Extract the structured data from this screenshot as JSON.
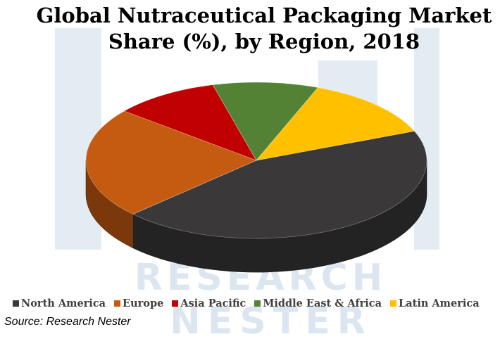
{
  "title_line1": "Global Nutraceutical Packaging Market",
  "title_line2": "Share (%), by Region, 2018",
  "source": "Source: Research Nester",
  "watermark": {
    "line1": "RESEARCH",
    "line2": "NESTER",
    "color": "#dbe6f0"
  },
  "chart_data": {
    "type": "pie",
    "title": "Global Nutraceutical Packaging Market Share (%), by Region, 2018",
    "legend_position": "bottom",
    "slices": [
      {
        "label": "North America",
        "value": 44,
        "color": "#3a3838"
      },
      {
        "label": "Europe",
        "value": 23,
        "color": "#c55a11"
      },
      {
        "label": "Asia Pacific",
        "value": 10,
        "color": "#c00000"
      },
      {
        "label": "Middle East & Africa",
        "value": 10,
        "color": "#548235"
      },
      {
        "label": "Latin America",
        "value": 13,
        "color": "#ffc000"
      }
    ]
  }
}
